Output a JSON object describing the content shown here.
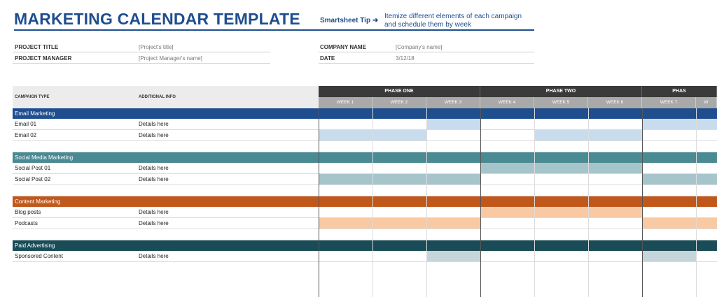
{
  "header": {
    "title": "MARKETING CALENDAR TEMPLATE",
    "tip_label": "Smartsheet Tip ➜",
    "tip_text": "Itemize different elements of each campaign and schedule them by week"
  },
  "project_info": {
    "project_title_label": "PROJECT TITLE",
    "project_title_value": "[Project's title]",
    "project_manager_label": "PROJECT MANAGER",
    "project_manager_value": "[Project Manager's name]",
    "company_name_label": "COMPANY NAME",
    "company_name_value": "[Company's name]",
    "date_label": "DATE",
    "date_value": "3/12/18"
  },
  "columns": {
    "campaign_type": "CAMPAIGN TYPE",
    "additional_info": "ADDITIONAL INFO"
  },
  "phases": [
    "PHASE ONE",
    "PHASE TWO",
    "PHAS"
  ],
  "weeks": [
    "WEEK 1",
    "WEEK 2",
    "WEEK 3",
    "WEEK 4",
    "WEEK 5",
    "WEEK 6",
    "WEEK 7",
    "W"
  ],
  "sections": [
    {
      "name": "Email Marketing",
      "color": "#1f4e8f",
      "rows": [
        {
          "item": "Email 01",
          "info": "Details here",
          "weeks": [
            3,
            7,
            8
          ],
          "bar_color": "#c9dcee"
        },
        {
          "item": "Email 02",
          "info": "Details here",
          "weeks": [
            1,
            2,
            5,
            6
          ],
          "bar_color": "#c9dcee"
        },
        {
          "item": "",
          "info": "",
          "weeks": [],
          "bar_color": ""
        }
      ]
    },
    {
      "name": "Social Media Marketing",
      "color": "#4a8a93",
      "rows": [
        {
          "item": "Social Post 01",
          "info": "Details here",
          "weeks": [
            4,
            5,
            6
          ],
          "bar_color": "#a6c5cb"
        },
        {
          "item": "Social Post 02",
          "info": "Details here",
          "weeks": [
            1,
            2,
            3,
            7,
            8
          ],
          "bar_color": "#a6c5cb"
        },
        {
          "item": "",
          "info": "",
          "weeks": [],
          "bar_color": ""
        }
      ]
    },
    {
      "name": "Content Marketing",
      "color": "#c0581c",
      "rows": [
        {
          "item": "Blog posts",
          "info": "Details here",
          "weeks": [
            4,
            5,
            6
          ],
          "bar_color": "#f8c9a2"
        },
        {
          "item": "Podcasts",
          "info": "Details here",
          "weeks": [
            1,
            2,
            3,
            7,
            8
          ],
          "bar_color": "#f8c9a2"
        },
        {
          "item": "",
          "info": "",
          "weeks": [],
          "bar_color": ""
        }
      ]
    },
    {
      "name": "Paid Advertising",
      "color": "#1a4c57",
      "rows": [
        {
          "item": "Sponsored Content",
          "info": "Details here",
          "weeks": [
            3,
            7
          ],
          "bar_color": "#c5d5d9"
        }
      ]
    }
  ]
}
